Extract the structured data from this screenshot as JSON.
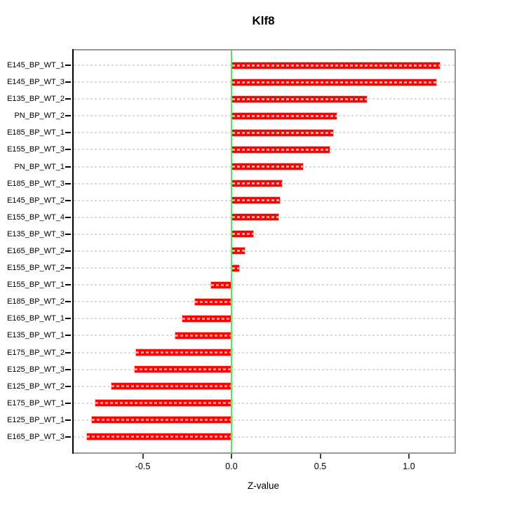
{
  "title": "Klf8",
  "x_axis_title": "Z-value",
  "chart_data": {
    "type": "bar",
    "orientation": "horizontal",
    "title": "Klf8",
    "xlabel": "Z-value",
    "ylabel": "",
    "categories": [
      "E145_BP_WT_1",
      "E145_BP_WT_3",
      "E135_BP_WT_2",
      "PN_BP_WT_2",
      "E185_BP_WT_1",
      "E155_BP_WT_3",
      "PN_BP_WT_1",
      "E185_BP_WT_3",
      "E145_BP_WT_2",
      "E155_BP_WT_4",
      "E135_BP_WT_3",
      "E165_BP_WT_2",
      "E155_BP_WT_2",
      "E155_BP_WT_1",
      "E185_BP_WT_2",
      "E165_BP_WT_1",
      "E135_BP_WT_1",
      "E175_BP_WT_2",
      "E125_BP_WT_3",
      "E125_BP_WT_2",
      "E175_BP_WT_1",
      "E125_BP_WT_1",
      "E165_BP_WT_3"
    ],
    "values": [
      1.17,
      1.15,
      0.76,
      0.59,
      0.57,
      0.55,
      0.4,
      0.28,
      0.27,
      0.26,
      0.12,
      0.07,
      0.04,
      -0.12,
      -0.21,
      -0.28,
      -0.32,
      -0.54,
      -0.55,
      -0.68,
      -0.77,
      -0.79,
      -0.82
    ],
    "x_ticks": [
      -0.5,
      0.0,
      0.5,
      1.0
    ],
    "x_tick_labels": [
      "-0.5",
      "0.0",
      "0.5",
      "1.0"
    ],
    "xlim": [
      -0.9,
      1.26
    ],
    "grid": "per-row horizontal dashed",
    "legend": "none",
    "colors": {
      "bar_fill": "#ff0000",
      "bar_border": "#ffb3b3",
      "zero_line": "#5ce65c",
      "gridline": "#d9d9d9",
      "frame": "#999999",
      "axis": "#000000"
    }
  }
}
